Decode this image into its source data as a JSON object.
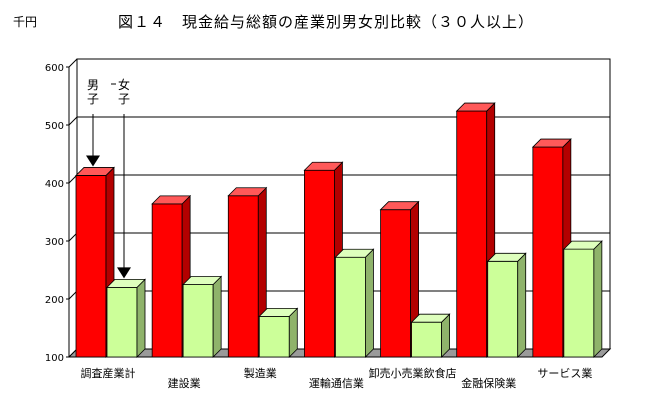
{
  "header": {
    "unit": "千円",
    "title": "図１４　現金給与総額の産業別男女別比較（３０人以上）"
  },
  "chart_data": {
    "type": "bar",
    "title": "図１４　現金給与総額の産業別男女別比較（３０人以上）",
    "ylabel": "千円",
    "xlabel": "",
    "ylim": [
      100,
      600
    ],
    "yticks": [
      100,
      200,
      300,
      400,
      500,
      600
    ],
    "grid": true,
    "categories": [
      "調査産業計",
      "建設業",
      "製造業",
      "運輸通信業",
      "卸売小売業飲食店",
      "金融保険業",
      "サービス業"
    ],
    "series": [
      {
        "name": "男子",
        "color": "#ff0000",
        "values": [
          413,
          364,
          378,
          422,
          354,
          524,
          462
        ]
      },
      {
        "name": "女子",
        "color": "#ccff99",
        "values": [
          220,
          225,
          170,
          272,
          160,
          265,
          286
        ]
      }
    ],
    "annotations": [
      {
        "text": "男子",
        "series": "男子",
        "category": "調査産業計"
      },
      {
        "text": "女子",
        "series": "女子",
        "category": "調査産業計"
      }
    ]
  }
}
